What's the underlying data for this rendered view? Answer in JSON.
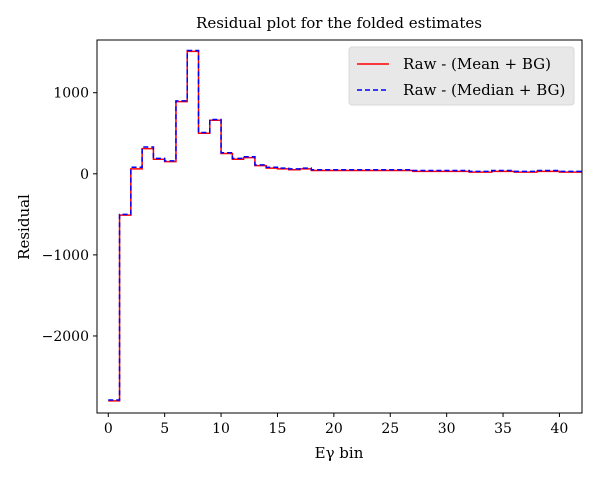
{
  "chart_data": {
    "type": "line",
    "drawstyle": "steps-post",
    "title": "Residual plot for the folded estimates",
    "xlabel": "Eγ bin",
    "ylabel": "Residual",
    "xlim": [
      -1,
      42
    ],
    "ylim": [
      -2950,
      1650
    ],
    "xticks": [
      0,
      5,
      10,
      15,
      20,
      25,
      30,
      35,
      40
    ],
    "yticks": [
      -2000,
      -1000,
      0,
      1000
    ],
    "ytick_labels": [
      "−2000",
      "−1000",
      "0",
      "1000"
    ],
    "grid": false,
    "legend_position": "upper right",
    "x": [
      0,
      1,
      2,
      3,
      4,
      5,
      6,
      7,
      8,
      9,
      10,
      11,
      12,
      13,
      14,
      15,
      16,
      17,
      18,
      19,
      20,
      21,
      22,
      23,
      24,
      25,
      26,
      27,
      28,
      29,
      30,
      31,
      32,
      33,
      34,
      35,
      36,
      37,
      38,
      39,
      40,
      41,
      42
    ],
    "series": [
      {
        "name": "Raw - (Mean + BG)",
        "color": "#ff0000",
        "dash": "solid",
        "values": [
          -2800,
          -510,
          60,
          310,
          180,
          150,
          890,
          1510,
          500,
          660,
          250,
          180,
          200,
          100,
          70,
          60,
          50,
          60,
          40,
          40,
          40,
          40,
          40,
          40,
          40,
          40,
          40,
          30,
          30,
          30,
          30,
          30,
          20,
          20,
          30,
          30,
          20,
          20,
          30,
          30,
          20,
          20,
          20
        ]
      },
      {
        "name": "Raw - (Median + BG)",
        "color": "#0000ff",
        "dash": "dashed",
        "values": [
          -2790,
          -500,
          80,
          330,
          190,
          160,
          900,
          1520,
          510,
          670,
          260,
          190,
          210,
          110,
          80,
          70,
          60,
          70,
          50,
          50,
          50,
          50,
          50,
          50,
          50,
          50,
          50,
          40,
          40,
          40,
          40,
          40,
          30,
          30,
          40,
          40,
          30,
          30,
          40,
          40,
          30,
          30,
          30
        ]
      }
    ]
  }
}
